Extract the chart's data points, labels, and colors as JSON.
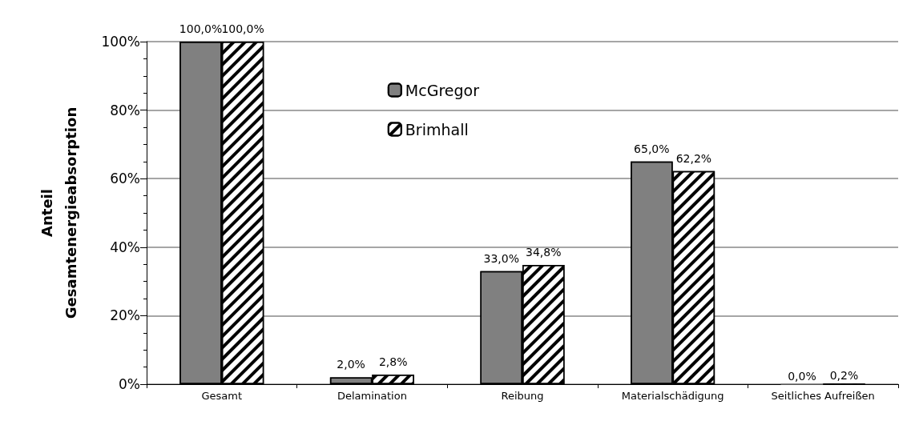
{
  "chart_data": {
    "type": "bar",
    "ylabel": "Anteil\nGesamtenergieabsorption",
    "categories": [
      "Gesamt",
      "Delamination",
      "Reibung",
      "Materialschädigung",
      "Seitliches Aufreißen"
    ],
    "series": [
      {
        "name": "McGregor",
        "color": "#808080",
        "values": [
          100,
          2,
          33,
          65,
          0
        ],
        "value_labels": [
          "100,0%",
          "2,0%",
          "33,0%",
          "65,0%",
          "0,0%"
        ]
      },
      {
        "name": "Brimhall",
        "color": "#ffffff",
        "values": [
          100,
          2.8,
          34.8,
          62.2,
          0.2
        ],
        "value_labels": [
          "100,0%",
          "2,8%",
          "34,8%",
          "62,2%",
          "0,2%"
        ]
      }
    ],
    "ylim": [
      0,
      100
    ],
    "yticks": [
      {
        "value": 0,
        "label": "0%"
      },
      {
        "value": 20,
        "label": "20%"
      },
      {
        "value": 40,
        "label": "40%"
      },
      {
        "value": 60,
        "label": "60%"
      },
      {
        "value": 80,
        "label": "80%"
      },
      {
        "value": 100,
        "label": "100%"
      }
    ],
    "grid": "y",
    "legend": "top"
  }
}
